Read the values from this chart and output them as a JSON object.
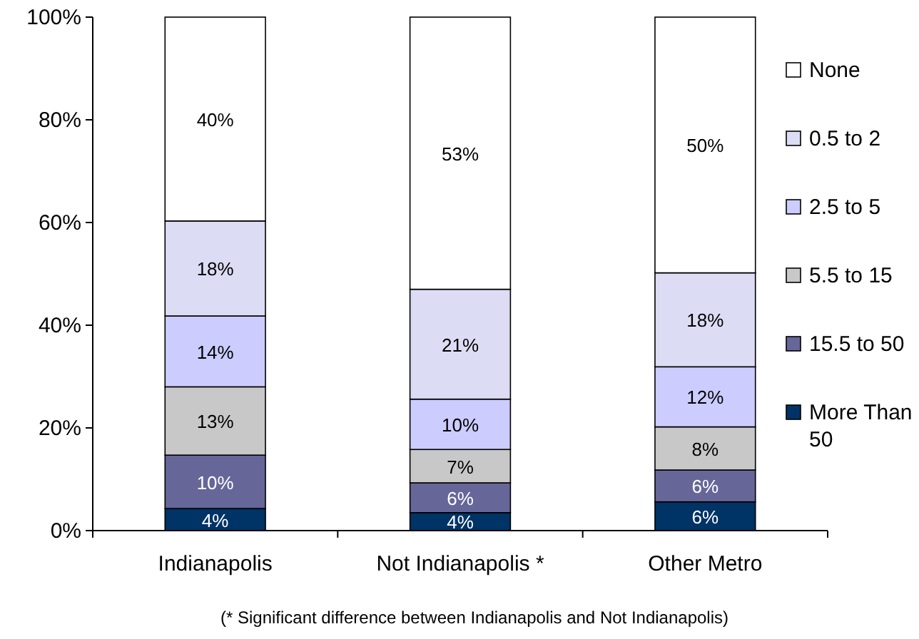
{
  "chart_data": {
    "type": "bar",
    "stacked": true,
    "categories": [
      "Indianapolis",
      "Not Indianapolis *",
      "Other Metro"
    ],
    "series": [
      {
        "name": "More Than 50",
        "color": "#003366",
        "values": [
          4.3,
          3.5,
          5.6
        ],
        "value_labels": [
          "4%",
          "4%",
          "6%"
        ]
      },
      {
        "name": "15.5 to 50",
        "color": "#666699",
        "values": [
          10.4,
          5.8,
          6.2
        ],
        "value_labels": [
          "10%",
          "6%",
          "6%"
        ]
      },
      {
        "name": "5.5 to 15",
        "color": "#c8c8c8",
        "values": [
          13.3,
          6.5,
          8.4
        ],
        "value_labels": [
          "13%",
          "7%",
          "8%"
        ]
      },
      {
        "name": "2.5 to 5",
        "color": "#ccccff",
        "values": [
          13.8,
          9.8,
          11.7
        ],
        "value_labels": [
          "14%",
          "10%",
          "12%"
        ]
      },
      {
        "name": "0.5 to 2",
        "color": "#dcdcf4",
        "values": [
          18.5,
          21.4,
          18.3
        ],
        "value_labels": [
          "18%",
          "21%",
          "18%"
        ]
      },
      {
        "name": "None",
        "color": "#ffffff",
        "values": [
          39.7,
          53.0,
          49.8
        ],
        "value_labels": [
          "40%",
          "53%",
          "50%"
        ]
      }
    ],
    "ylim": [
      0,
      100
    ],
    "yticks": [
      {
        "value": 0,
        "label": "0%"
      },
      {
        "value": 20,
        "label": "20%"
      },
      {
        "value": 40,
        "label": "40%"
      },
      {
        "value": 60,
        "label": "60%"
      },
      {
        "value": 80,
        "label": "80%"
      },
      {
        "value": 100,
        "label": "100%"
      }
    ],
    "legend": "right",
    "annotations": [
      "(* Significant difference between Indianapolis and Not Indianapolis)"
    ]
  }
}
